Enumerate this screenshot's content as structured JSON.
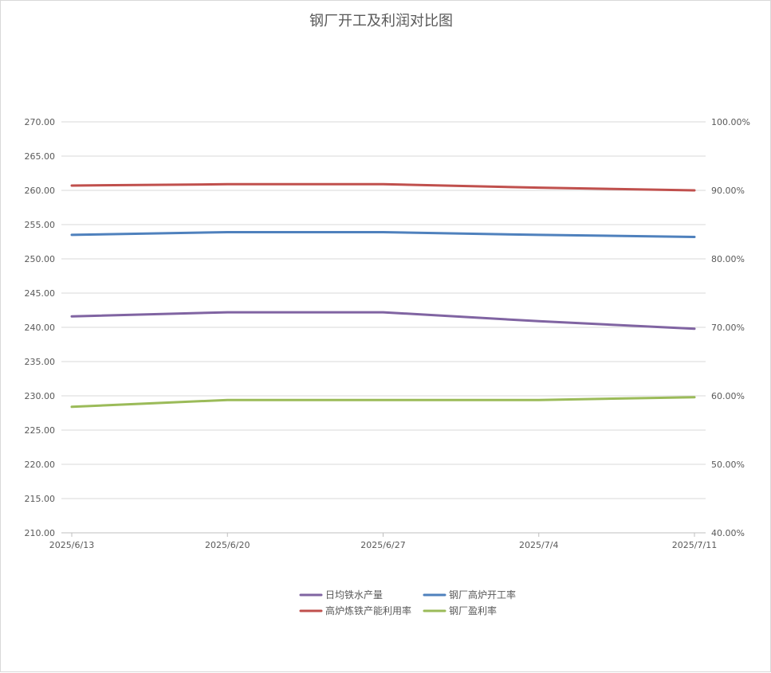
{
  "chart_data": {
    "type": "line",
    "title": "钢厂开工及利润对比图",
    "categories": [
      "2025/6/13",
      "2025/6/20",
      "2025/6/27",
      "2025/7/4",
      "2025/7/11"
    ],
    "y_left": {
      "min": 210,
      "max": 270,
      "step": 5,
      "tick_labels": [
        "210.00",
        "215.00",
        "220.00",
        "225.00",
        "230.00",
        "235.00",
        "240.00",
        "245.00",
        "250.00",
        "255.00",
        "260.00",
        "265.00",
        "270.00"
      ]
    },
    "y_right": {
      "min": 0.4,
      "max": 1.0,
      "step": 0.1,
      "tick_labels": [
        "40.00%",
        "50.00%",
        "60.00%",
        "70.00%",
        "80.00%",
        "90.00%",
        "100.00%"
      ]
    },
    "grid": true,
    "legend_position": "bottom",
    "series": [
      {
        "name": "日均铁水产量",
        "axis": "left",
        "color": "#8064a2",
        "values": [
          241.6,
          242.2,
          242.2,
          240.9,
          239.8
        ]
      },
      {
        "name": "钢厂高炉开工率",
        "axis": "right",
        "color": "#4f81bd",
        "values": [
          0.835,
          0.839,
          0.839,
          0.835,
          0.832
        ]
      },
      {
        "name": "高炉炼铁产能利用率",
        "axis": "right",
        "color": "#c0504d",
        "values": [
          0.907,
          0.909,
          0.909,
          0.904,
          0.9
        ]
      },
      {
        "name": "钢厂盈利率",
        "axis": "right",
        "color": "#9bbb59",
        "values": [
          0.584,
          0.594,
          0.594,
          0.594,
          0.598
        ]
      }
    ]
  }
}
